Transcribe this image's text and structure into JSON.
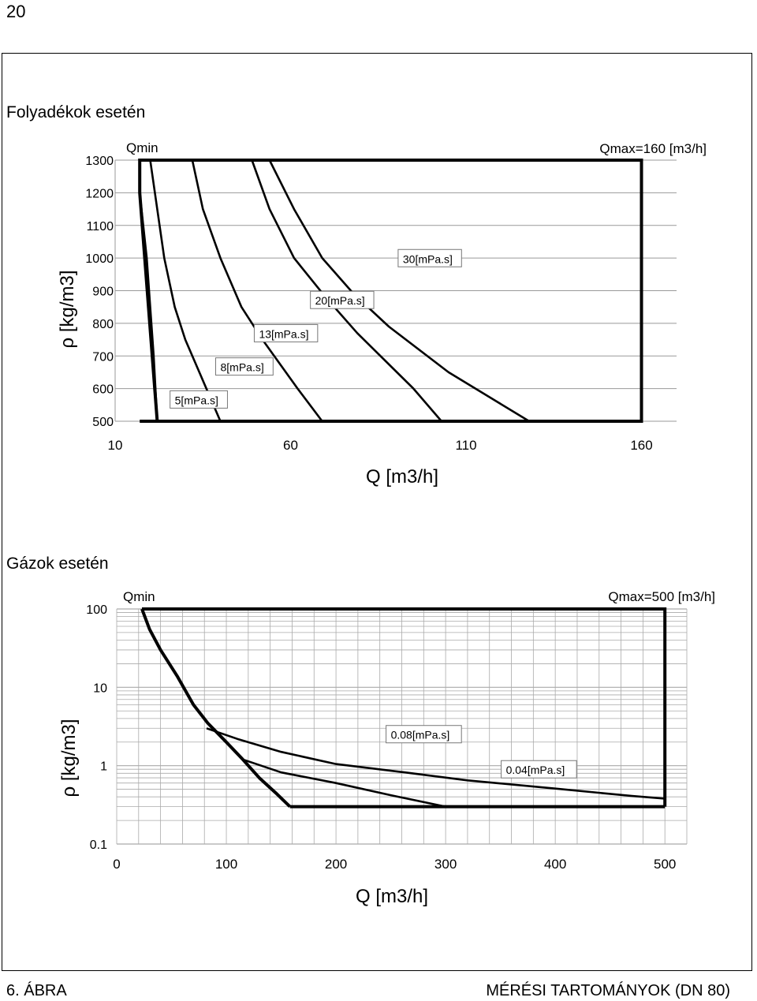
{
  "page": {
    "number": "20"
  },
  "footer": {
    "figure_label": "6. ÁBRA",
    "figure_title": "MÉRÉSI TARTOMÁNYOK (DN 80)"
  },
  "chart_data": [
    {
      "type": "line",
      "title": "Folyadékok esetén",
      "xlabel": "Q [m3/h]",
      "ylabel": "ρ [kg/m3]",
      "xlim": [
        10,
        170
      ],
      "ylim": [
        500,
        1300
      ],
      "x_ticks": [
        "10",
        "60",
        "110",
        "160"
      ],
      "x_tick_values": [
        10,
        60,
        110,
        160
      ],
      "y_ticks": [
        "1300",
        "1200",
        "1100",
        "1000",
        "900",
        "800",
        "700",
        "600",
        "500"
      ],
      "y_tick_values": [
        1300,
        1200,
        1100,
        1000,
        900,
        800,
        700,
        600,
        500
      ],
      "qmin_label": "Qmin",
      "qmax_label": "Qmax=160 [m3/h]",
      "boundary": [
        [
          17,
          500
        ],
        [
          160,
          500
        ],
        [
          160,
          1300
        ],
        [
          17,
          1300
        ],
        [
          17,
          1200
        ],
        [
          22,
          500
        ]
      ],
      "series": [
        {
          "name": "5[mPa.s]",
          "label_at": [
            27,
            557
          ],
          "points": [
            [
              17,
              1200
            ],
            [
              19,
              1000
            ],
            [
              20,
              850
            ],
            [
              21,
              700
            ],
            [
              22,
              500
            ]
          ]
        },
        {
          "name": "8[mPa.s]",
          "label_at": [
            40,
            658
          ],
          "points": [
            [
              20,
              1300
            ],
            [
              22,
              1150
            ],
            [
              24,
              1000
            ],
            [
              27,
              850
            ],
            [
              30,
              750
            ],
            [
              34,
              650
            ],
            [
              40,
              500
            ]
          ]
        },
        {
          "name": "13[mPa.s]",
          "label_at": [
            51,
            760
          ],
          "points": [
            [
              32,
              1300
            ],
            [
              35,
              1150
            ],
            [
              40,
              1000
            ],
            [
              46,
              850
            ],
            [
              52,
              750
            ],
            [
              62,
              600
            ],
            [
              69,
              500
            ]
          ]
        },
        {
          "name": "20[mPa.s]",
          "label_at": [
            67,
            862
          ],
          "points": [
            [
              49,
              1300
            ],
            [
              54,
              1150
            ],
            [
              61,
              1000
            ],
            [
              70,
              880
            ],
            [
              79,
              770
            ],
            [
              95,
              600
            ],
            [
              103,
              500
            ]
          ]
        },
        {
          "name": "30[mPa.s]",
          "label_at": [
            92,
            990
          ],
          "points": [
            [
              54,
              1300
            ],
            [
              61,
              1150
            ],
            [
              69,
              1000
            ],
            [
              78,
              890
            ],
            [
              88,
              790
            ],
            [
              105,
              650
            ],
            [
              128,
              500
            ]
          ]
        }
      ]
    },
    {
      "type": "line",
      "title": "Gázok esetén",
      "xlabel": "Q [m3/h]",
      "ylabel": "ρ [kg/m3]",
      "yscale": "log",
      "xlim": [
        0,
        520
      ],
      "ylim": [
        0.1,
        100
      ],
      "x_ticks": [
        "0",
        "100",
        "200",
        "300",
        "400",
        "500"
      ],
      "x_tick_values": [
        0,
        100,
        200,
        300,
        400,
        500
      ],
      "y_ticks": [
        "100",
        "10",
        "1",
        "0.1"
      ],
      "y_tick_values": [
        100,
        10,
        1,
        0.1
      ],
      "qmin_label": "Qmin",
      "qmax_label": "Qmax=500 [m3/h]",
      "boundary_top": [
        [
          23,
          100
        ],
        [
          500,
          100
        ],
        [
          500,
          0.3
        ]
      ],
      "boundary_bottom": [
        [
          158,
          0.3
        ],
        [
          500,
          0.3
        ]
      ],
      "min_curve": [
        [
          23,
          100
        ],
        [
          30,
          55
        ],
        [
          40,
          30
        ],
        [
          55,
          14
        ],
        [
          70,
          6
        ],
        [
          83,
          3.5
        ],
        [
          100,
          2
        ],
        [
          115,
          1.2
        ],
        [
          130,
          0.7
        ],
        [
          145,
          0.45
        ],
        [
          158,
          0.3
        ]
      ],
      "series": [
        {
          "name": "0.08[mPa.s]",
          "label_at": [
            250,
            2.3
          ],
          "points": [
            [
              82,
              3.0
            ],
            [
              110,
              2.2
            ],
            [
              150,
              1.5
            ],
            [
              200,
              1.05
            ],
            [
              260,
              0.83
            ],
            [
              320,
              0.65
            ],
            [
              400,
              0.51
            ],
            [
              470,
              0.41
            ],
            [
              500,
              0.38
            ]
          ]
        },
        {
          "name": "0.04[mPa.s]",
          "label_at": [
            355,
            0.82
          ],
          "points": [
            [
              115,
              1.2
            ],
            [
              150,
              0.82
            ],
            [
              200,
              0.6
            ],
            [
              250,
              0.42
            ],
            [
              300,
              0.3
            ]
          ]
        }
      ]
    }
  ]
}
